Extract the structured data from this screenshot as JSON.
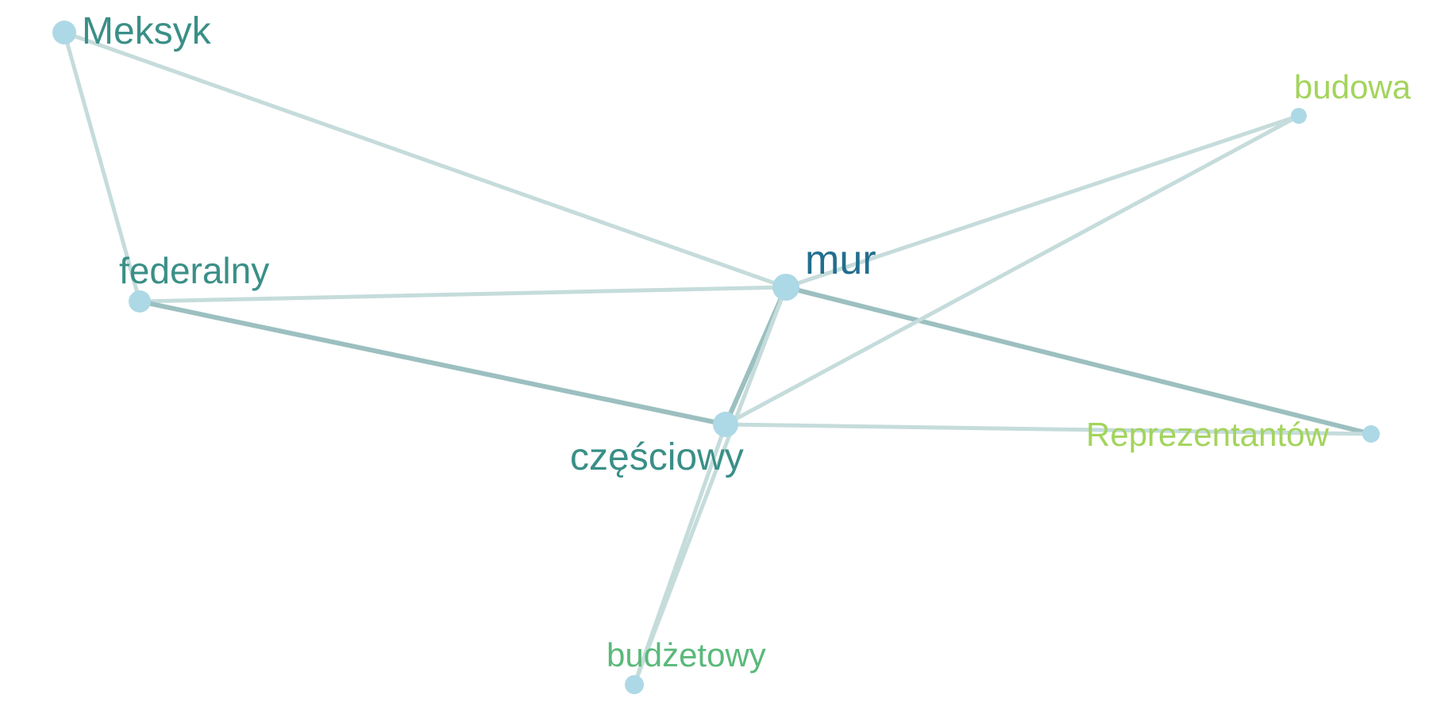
{
  "graph": {
    "nodes": [
      {
        "id": "meksyk",
        "label": "Meksyk",
        "color": "#3a8f87"
      },
      {
        "id": "federalny",
        "label": "federalny",
        "color": "#3a8f87"
      },
      {
        "id": "mur",
        "label": "mur",
        "color": "#226e8f"
      },
      {
        "id": "czesciowy",
        "label": "częściowy",
        "color": "#3a8f87"
      },
      {
        "id": "budowa",
        "label": "budowa",
        "color": "#a3d45c"
      },
      {
        "id": "reprezentantow",
        "label": "Reprezentantów",
        "color": "#a3d45c"
      },
      {
        "id": "budzetowy",
        "label": "budżetowy",
        "color": "#5ab97a"
      }
    ],
    "edges": [
      {
        "source": "meksyk",
        "target": "mur",
        "weight": "weak"
      },
      {
        "source": "meksyk",
        "target": "federalny",
        "weight": "weak"
      },
      {
        "source": "federalny",
        "target": "mur",
        "weight": "weak"
      },
      {
        "source": "federalny",
        "target": "czesciowy",
        "weight": "strong"
      },
      {
        "source": "mur",
        "target": "czesciowy",
        "weight": "strong"
      },
      {
        "source": "mur",
        "target": "budowa",
        "weight": "weak"
      },
      {
        "source": "mur",
        "target": "reprezentantow",
        "weight": "strong"
      },
      {
        "source": "mur",
        "target": "budzetowy",
        "weight": "weak"
      },
      {
        "source": "czesciowy",
        "target": "budowa",
        "weight": "weak"
      },
      {
        "source": "czesciowy",
        "target": "reprezentantow",
        "weight": "weak"
      },
      {
        "source": "czesciowy",
        "target": "budzetowy",
        "weight": "weak"
      }
    ],
    "node_fill": "#add8e6",
    "edge_color_weak": "#c5dcdb",
    "edge_color_strong": "#9cbfc0"
  }
}
